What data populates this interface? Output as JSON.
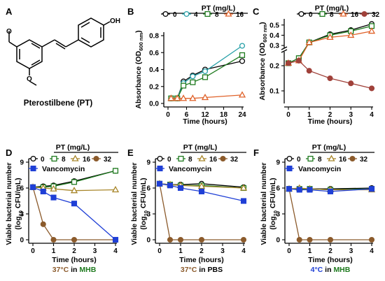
{
  "panel_letters": [
    "A",
    "B",
    "C",
    "D",
    "E",
    "F"
  ],
  "structure": {
    "name": "Pterostilbene (PT)",
    "oh_label": "OH"
  },
  "legend": {
    "title": "PT (mg/L)",
    "vancomycin": "Vancomycin"
  },
  "conditions": {
    "D": {
      "temp": "37°C",
      "medium": "MHB",
      "temp_color": "#8b5a2b",
      "medium_color": "#1e7a1e",
      "joiner": " in "
    },
    "E": {
      "temp": "37°C",
      "medium": "PBS",
      "temp_color": "#8b5a2b",
      "medium_color": "#000000",
      "joiner": " in "
    },
    "F": {
      "temp": "4°C",
      "medium": "MHB",
      "temp_color": "#1f3fd6",
      "medium_color": "#1e7a1e",
      "joiner": " in "
    }
  },
  "chart_data": [
    {
      "panel": "B",
      "type": "line",
      "xlabel": "Time (hours)",
      "ylabel": "Absorbance (OD600 nm)",
      "ylabel_main": "Absorbance (OD",
      "ylabel_sub": "600 nm",
      "ylabel_end": ")",
      "xlim": [
        0,
        24
      ],
      "ylim": [
        0,
        0.8
      ],
      "xticks": [
        0,
        6,
        12,
        18,
        24
      ],
      "yticks": [
        0.0,
        0.2,
        0.4,
        0.6,
        0.8
      ],
      "ytick_labels": [
        "0.0",
        "0.2",
        "0.4",
        "0.6",
        "0.8"
      ],
      "x": [
        1,
        3,
        5,
        8,
        12,
        24
      ],
      "series": [
        {
          "name": "0",
          "color": "#000000",
          "marker": "circle",
          "values": [
            0.06,
            0.06,
            0.26,
            0.33,
            0.4,
            0.5
          ]
        },
        {
          "name": "4",
          "color": "#27a0a8",
          "marker": "circle",
          "values": [
            0.06,
            0.06,
            0.24,
            0.32,
            0.38,
            0.68
          ]
        },
        {
          "name": "8",
          "color": "#1e7a1e",
          "marker": "square",
          "values": [
            0.06,
            0.06,
            0.21,
            0.25,
            0.31,
            0.57
          ]
        },
        {
          "name": "16",
          "color": "#e0622a",
          "marker": "triangle",
          "values": [
            0.06,
            0.06,
            0.06,
            0.06,
            0.07,
            0.1
          ]
        }
      ]
    },
    {
      "panel": "C",
      "type": "line",
      "xlabel": "Time (hours)",
      "ylabel": "Absorbance (OD600 nm)",
      "ylabel_main": "Absorbance (OD",
      "ylabel_sub": "600 nm",
      "ylabel_end": ")",
      "xlim": [
        0,
        4
      ],
      "broken_axis": true,
      "ylim_lower": [
        0.05,
        0.25
      ],
      "ylim_upper": [
        0.28,
        0.56
      ],
      "xticks": [
        0,
        1,
        2,
        3,
        4
      ],
      "yticks_lower": [
        0.1,
        0.2
      ],
      "ytick_labels_lower": [
        "0.1",
        "0.2"
      ],
      "yticks_upper": [
        0.3,
        0.4,
        0.5
      ],
      "ytick_labels_upper": [
        "0.3",
        "0.4",
        "0.5"
      ],
      "x": [
        0,
        0.5,
        1,
        2,
        3,
        4
      ],
      "series": [
        {
          "name": "0",
          "color": "#000000",
          "marker": "circle",
          "values": [
            0.21,
            0.23,
            0.33,
            0.41,
            0.45,
            0.51
          ]
        },
        {
          "name": "8",
          "color": "#1e7a1e",
          "marker": "square",
          "values": [
            0.21,
            0.23,
            0.33,
            0.4,
            0.44,
            0.49
          ]
        },
        {
          "name": "16",
          "color": "#e0622a",
          "marker": "triangle",
          "values": [
            0.21,
            0.22,
            0.33,
            0.38,
            0.4,
            0.44
          ]
        },
        {
          "name": "32",
          "color": "#a0413a",
          "marker": "circle",
          "values": [
            0.21,
            0.22,
            0.18,
            0.15,
            0.13,
            0.11
          ]
        }
      ]
    },
    {
      "panel": "D",
      "type": "line",
      "xlabel": "Time (hours)",
      "ylabel": "Viable bacterial number (log10 CFU/mL)",
      "ylabel_line1": "Viable bacterial number",
      "ylabel_line2_a": "(log",
      "ylabel_line2_sub": "10",
      "ylabel_line2_b": " CFU/mL)",
      "xlim": [
        0,
        4
      ],
      "ylim": [
        0,
        9
      ],
      "xticks": [
        0,
        1,
        2,
        3,
        4
      ],
      "yticks": [
        0,
        3,
        6,
        9
      ],
      "x": [
        0,
        0.5,
        1,
        2,
        4
      ],
      "series": [
        {
          "name": "0",
          "color": "#000000",
          "marker": "circle",
          "values": [
            6.1,
            6.2,
            6.3,
            6.8,
            8.0
          ]
        },
        {
          "name": "8",
          "color": "#1e7a1e",
          "marker": "square",
          "values": [
            6.1,
            6.1,
            6.2,
            6.7,
            8.0
          ]
        },
        {
          "name": "16",
          "color": "#a8862a",
          "marker": "triangle",
          "values": [
            6.1,
            6.0,
            5.9,
            5.7,
            5.8
          ]
        },
        {
          "name": "32",
          "color": "#8b5a2b",
          "marker": "circle",
          "values": [
            6.1,
            1.8,
            0,
            0,
            0
          ]
        },
        {
          "name": "Vancomycin",
          "color": "#1f3fd6",
          "marker": "square",
          "values": [
            6.1,
            5.6,
            4.9,
            4.2,
            0
          ]
        }
      ]
    },
    {
      "panel": "E",
      "type": "line",
      "xlabel": "Time (hours)",
      "ylabel": "Viable bacterial number (log10 CFU/mL)",
      "ylabel_line1": "Viable bacterial number",
      "ylabel_line2_a": "(log",
      "ylabel_line2_sub": "10",
      "ylabel_line2_b": " CFU/mL)",
      "xlim": [
        0,
        4
      ],
      "ylim": [
        0,
        9
      ],
      "xticks": [
        0,
        1,
        2,
        3,
        4
      ],
      "yticks": [
        0,
        3,
        6,
        9
      ],
      "x": [
        0,
        0.5,
        1,
        2,
        4
      ],
      "series": [
        {
          "name": "0",
          "color": "#000000",
          "marker": "circle",
          "values": [
            6.5,
            6.4,
            6.4,
            6.5,
            6.1
          ]
        },
        {
          "name": "8",
          "color": "#1e7a1e",
          "marker": "square",
          "values": [
            6.5,
            6.4,
            6.3,
            6.3,
            6.0
          ]
        },
        {
          "name": "16",
          "color": "#a8862a",
          "marker": "triangle",
          "values": [
            6.5,
            6.4,
            6.3,
            6.2,
            6.0
          ]
        },
        {
          "name": "32",
          "color": "#8b5a2b",
          "marker": "circle",
          "values": [
            6.5,
            0,
            0,
            0,
            0
          ]
        },
        {
          "name": "Vancomycin",
          "color": "#1f3fd6",
          "marker": "square",
          "values": [
            6.5,
            6.3,
            6.0,
            5.6,
            4.5
          ]
        }
      ]
    },
    {
      "panel": "F",
      "type": "line",
      "xlabel": "Time (hours)",
      "ylabel": "Viable bacterial number (log10 CFU/mL)",
      "ylabel_line1": "Viable bacterial number",
      "ylabel_line2_a": "(log",
      "ylabel_line2_sub": "10",
      "ylabel_line2_b": " CFU/mL)",
      "xlim": [
        0,
        4
      ],
      "ylim": [
        0,
        9
      ],
      "xticks": [
        0,
        1,
        2,
        3,
        4
      ],
      "yticks": [
        0,
        3,
        6,
        9
      ],
      "x": [
        0,
        0.5,
        1,
        2,
        4
      ],
      "series": [
        {
          "name": "0",
          "color": "#000000",
          "marker": "circle",
          "values": [
            5.9,
            5.9,
            5.9,
            5.9,
            6.0
          ]
        },
        {
          "name": "8",
          "color": "#1e7a1e",
          "marker": "square",
          "values": [
            5.9,
            5.9,
            5.9,
            5.8,
            5.9
          ]
        },
        {
          "name": "16",
          "color": "#a8862a",
          "marker": "triangle",
          "values": [
            5.9,
            6.0,
            5.9,
            5.8,
            5.8
          ]
        },
        {
          "name": "32",
          "color": "#8b5a2b",
          "marker": "circle",
          "values": [
            5.9,
            0,
            0,
            0,
            0
          ]
        },
        {
          "name": "Vancomycin",
          "color": "#1f3fd6",
          "marker": "square",
          "values": [
            5.9,
            5.8,
            5.8,
            5.6,
            5.9
          ]
        }
      ]
    }
  ]
}
